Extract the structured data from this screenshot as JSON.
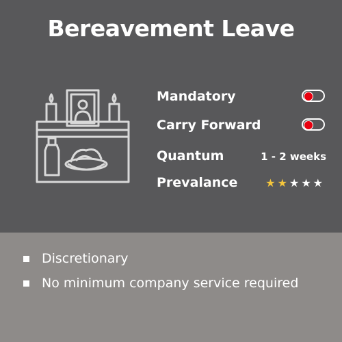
{
  "title": "Bereavement Leave",
  "icon": "memorial-altar-icon",
  "attributes": [
    {
      "label": "Mandatory",
      "type": "toggle",
      "enabled": false
    },
    {
      "label": "Carry Forward",
      "type": "toggle",
      "enabled": false
    },
    {
      "label": "Quantum",
      "type": "text",
      "value": "1 - 2 weeks"
    },
    {
      "label": "Prevalance",
      "type": "rating",
      "rating": 2,
      "max": 5
    }
  ],
  "bullets": [
    "Discretionary",
    "No minimum company service required"
  ],
  "colors": {
    "top_background": "#58585a",
    "bottom_background": "#8e8b89",
    "toggle_knob": "#e8000f",
    "star_filled": "#f5c63c",
    "star_empty": "#ffffff"
  }
}
